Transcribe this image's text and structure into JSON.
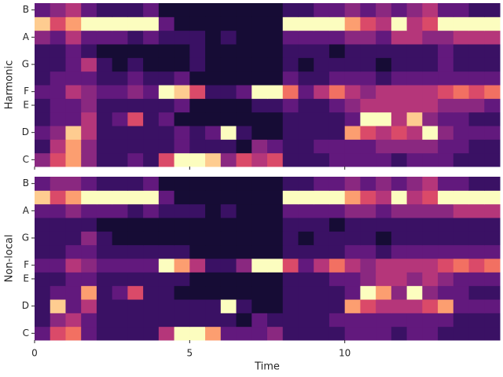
{
  "chart_data": [
    {
      "type": "heatmap",
      "ylabel": "Harmonic",
      "colormap": "magma",
      "show_xticklabels": false,
      "categories": [
        "C",
        null,
        "D",
        null,
        "E",
        "F",
        null,
        "G",
        null,
        "A",
        null,
        "B"
      ],
      "xlim": [
        0,
        15
      ],
      "xticks": [
        0,
        5,
        10
      ],
      "z": [
        [
          0.4,
          0.6,
          0.8,
          0.4,
          0.2,
          0.2,
          0.3,
          0.2,
          0.6,
          1,
          1,
          0.9,
          0.4,
          0.6,
          0.5,
          0.6,
          0.2,
          0.2,
          0.2,
          0.3,
          0.3,
          0.3,
          0.3,
          0.2,
          0.3,
          0.3,
          0.3,
          0.2,
          0.2,
          0.2
        ],
        [
          0.2,
          0.5,
          0.8,
          0.4,
          0.2,
          0.2,
          0.2,
          0.2,
          0.2,
          0.3,
          0.2,
          0.2,
          0.2,
          0.1,
          0.4,
          0.3,
          0.2,
          0.2,
          0.3,
          0.3,
          0.3,
          0.3,
          0.4,
          0.4,
          0.4,
          0.4,
          0.3,
          0.3,
          0.2,
          0.2
        ],
        [
          0.3,
          0.4,
          0.9,
          0.5,
          0.2,
          0.2,
          0.2,
          0.2,
          0.2,
          0.3,
          0.2,
          0.3,
          1,
          0.2,
          0.1,
          0.1,
          0.2,
          0.2,
          0.2,
          0.2,
          0.8,
          0.6,
          0.5,
          0.6,
          0.5,
          1,
          0.4,
          0.3,
          0.3,
          0.3
        ],
        [
          0.2,
          0.3,
          0.3,
          0.5,
          0.2,
          0.3,
          0.6,
          0.2,
          0.3,
          0.1,
          0.1,
          0.1,
          0.1,
          0.1,
          0.1,
          0.1,
          0.2,
          0.2,
          0.2,
          0.2,
          0.3,
          1,
          1,
          0.5,
          0.9,
          0.4,
          0.3,
          0.3,
          0.2,
          0.2
        ],
        [
          0.2,
          0.3,
          0.3,
          0.4,
          0.2,
          0.2,
          0.2,
          0.2,
          0.2,
          0.3,
          0.1,
          0.1,
          0.1,
          0.1,
          0.2,
          0.2,
          0.3,
          0.2,
          0.2,
          0.3,
          0.4,
          0.5,
          0.5,
          0.5,
          0.5,
          0.5,
          0.4,
          0.4,
          0.4,
          0.3
        ],
        [
          0.3,
          0.3,
          0.5,
          0.4,
          0.3,
          0.3,
          0.4,
          0.3,
          1,
          0.9,
          0.6,
          0.2,
          0.2,
          0.3,
          1,
          1,
          0.7,
          0.3,
          0.5,
          0.7,
          0.5,
          0.4,
          0.5,
          0.5,
          0.5,
          0.5,
          0.6,
          0.7,
          0.6,
          0.7
        ],
        [
          0.2,
          0.3,
          0.3,
          0.3,
          0.2,
          0.2,
          0.3,
          0.2,
          0.2,
          0.3,
          0.1,
          0.1,
          0.1,
          0.1,
          0.1,
          0.1,
          0.3,
          0.2,
          0.2,
          0.3,
          0.3,
          0.3,
          0.2,
          0.3,
          0.3,
          0.3,
          0.3,
          0.3,
          0.3,
          0.3
        ],
        [
          0.2,
          0.2,
          0.3,
          0.5,
          0.2,
          0.1,
          0.2,
          0.1,
          0.1,
          0.1,
          0.2,
          0.1,
          0.1,
          0.1,
          0.1,
          0.1,
          0.2,
          0.1,
          0.2,
          0.2,
          0.2,
          0.2,
          0.1,
          0.2,
          0.2,
          0.2,
          0.3,
          0.2,
          0.2,
          0.2
        ],
        [
          0.2,
          0.2,
          0.3,
          0.2,
          0.1,
          0.1,
          0.1,
          0.1,
          0.1,
          0.1,
          0.2,
          0.1,
          0.1,
          0.1,
          0.1,
          0.1,
          0.2,
          0.2,
          0.2,
          0.1,
          0.2,
          0.2,
          0.2,
          0.2,
          0.2,
          0.2,
          0.3,
          0.2,
          0.2,
          0.2
        ],
        [
          0.4,
          0.3,
          0.5,
          0.3,
          0.3,
          0.3,
          0.2,
          0.3,
          0.2,
          0.2,
          0.2,
          0.1,
          0.2,
          0.1,
          0.1,
          0.1,
          0.3,
          0.3,
          0.3,
          0.3,
          0.4,
          0.4,
          0.3,
          0.5,
          0.5,
          0.4,
          0.4,
          0.5,
          0.5,
          0.5
        ],
        [
          0.9,
          0.6,
          0.8,
          1,
          1,
          1,
          1,
          1,
          0.3,
          0.1,
          0.1,
          0.1,
          0.1,
          0.1,
          0.1,
          0.1,
          1,
          1,
          1,
          1,
          0.8,
          0.6,
          0.5,
          1,
          0.5,
          0.6,
          1,
          1,
          1,
          1
        ],
        [
          0.3,
          0.4,
          0.5,
          0.3,
          0.2,
          0.2,
          0.2,
          0.3,
          0.1,
          0.1,
          0.1,
          0.1,
          0.1,
          0.1,
          0.1,
          0.1,
          0.2,
          0.2,
          0.3,
          0.3,
          0.4,
          0.3,
          0.4,
          0.3,
          0.4,
          0.5,
          0.3,
          0.3,
          0.2,
          0.2
        ]
      ]
    },
    {
      "type": "heatmap",
      "ylabel": "Non-local",
      "xlabel": "Time",
      "colormap": "magma",
      "show_xticklabels": true,
      "categories": [
        "C",
        null,
        "D",
        null,
        "E",
        "F",
        null,
        "G",
        null,
        "A",
        null,
        "B"
      ],
      "xlim": [
        0,
        15
      ],
      "xticks": [
        0,
        5,
        10
      ],
      "z": [
        [
          0.3,
          0.6,
          0.7,
          0.3,
          0.2,
          0.2,
          0.2,
          0.2,
          0.5,
          1,
          1,
          0.8,
          0.3,
          0.3,
          0.3,
          0.4,
          0.2,
          0.2,
          0.2,
          0.2,
          0.3,
          0.3,
          0.3,
          0.2,
          0.3,
          0.3,
          0.2,
          0.2,
          0.2,
          0.2
        ],
        [
          0.2,
          0.4,
          0.5,
          0.3,
          0.2,
          0.2,
          0.2,
          0.2,
          0.2,
          0.2,
          0.2,
          0.2,
          0.2,
          0.1,
          0.3,
          0.2,
          0.2,
          0.2,
          0.2,
          0.3,
          0.3,
          0.3,
          0.3,
          0.3,
          0.3,
          0.3,
          0.3,
          0.2,
          0.2,
          0.2
        ],
        [
          0.2,
          0.9,
          0.3,
          0.5,
          0.2,
          0.2,
          0.2,
          0.2,
          0.2,
          0.2,
          0.2,
          0.2,
          1,
          0.2,
          0.1,
          0.1,
          0.2,
          0.2,
          0.2,
          0.2,
          0.8,
          0.6,
          0.5,
          0.5,
          0.5,
          0.6,
          0.8,
          0.3,
          0.3,
          0.3
        ],
        [
          0.2,
          0.3,
          0.3,
          0.8,
          0.2,
          0.3,
          0.6,
          0.2,
          0.2,
          0.1,
          0.1,
          0.1,
          0.1,
          0.1,
          0.1,
          0.1,
          0.2,
          0.2,
          0.2,
          0.2,
          0.3,
          1,
          0.8,
          0.4,
          1,
          0.4,
          0.3,
          0.3,
          0.2,
          0.2
        ],
        [
          0.2,
          0.2,
          0.3,
          0.3,
          0.2,
          0.2,
          0.2,
          0.2,
          0.2,
          0.2,
          0.1,
          0.1,
          0.1,
          0.1,
          0.1,
          0.1,
          0.2,
          0.2,
          0.2,
          0.3,
          0.3,
          0.4,
          0.5,
          0.5,
          0.4,
          0.5,
          0.4,
          0.3,
          0.3,
          0.3
        ],
        [
          0.3,
          0.3,
          0.5,
          0.4,
          0.3,
          0.3,
          0.3,
          0.3,
          1,
          0.8,
          0.5,
          0.2,
          0.2,
          0.4,
          1,
          1,
          0.6,
          0.3,
          0.5,
          0.7,
          0.5,
          0.4,
          0.5,
          0.5,
          0.5,
          0.5,
          0.6,
          0.7,
          0.6,
          0.7
        ],
        [
          0.2,
          0.2,
          0.3,
          0.3,
          0.2,
          0.2,
          0.2,
          0.2,
          0.2,
          0.2,
          0.1,
          0.1,
          0.1,
          0.1,
          0.1,
          0.1,
          0.2,
          0.2,
          0.2,
          0.2,
          0.3,
          0.3,
          0.2,
          0.3,
          0.3,
          0.3,
          0.3,
          0.3,
          0.3,
          0.3
        ],
        [
          0.2,
          0.2,
          0.2,
          0.4,
          0.2,
          0.1,
          0.1,
          0.1,
          0.1,
          0.1,
          0.1,
          0.1,
          0.1,
          0.1,
          0.1,
          0.1,
          0.2,
          0.1,
          0.2,
          0.2,
          0.2,
          0.2,
          0.1,
          0.2,
          0.2,
          0.2,
          0.2,
          0.2,
          0.2,
          0.2
        ],
        [
          0.2,
          0.2,
          0.2,
          0.2,
          0.1,
          0.1,
          0.1,
          0.1,
          0.1,
          0.1,
          0.1,
          0.1,
          0.1,
          0.1,
          0.1,
          0.1,
          0.2,
          0.2,
          0.2,
          0.1,
          0.2,
          0.2,
          0.2,
          0.2,
          0.2,
          0.2,
          0.2,
          0.2,
          0.2,
          0.2
        ],
        [
          0.3,
          0.3,
          0.4,
          0.3,
          0.3,
          0.3,
          0.2,
          0.3,
          0.2,
          0.2,
          0.2,
          0.1,
          0.2,
          0.1,
          0.1,
          0.1,
          0.3,
          0.3,
          0.3,
          0.3,
          0.4,
          0.4,
          0.3,
          0.4,
          0.4,
          0.4,
          0.4,
          0.5,
          0.5,
          0.5
        ],
        [
          0.9,
          0.6,
          0.8,
          1,
          1,
          1,
          1,
          1,
          0.3,
          0.1,
          0.1,
          0.1,
          0.1,
          0.1,
          0.1,
          0.1,
          1,
          1,
          1,
          1,
          0.8,
          0.6,
          0.5,
          1,
          0.5,
          0.6,
          1,
          1,
          1,
          1
        ],
        [
          0.3,
          0.4,
          0.4,
          0.3,
          0.2,
          0.2,
          0.2,
          0.3,
          0.1,
          0.1,
          0.1,
          0.1,
          0.1,
          0.1,
          0.1,
          0.1,
          0.2,
          0.2,
          0.3,
          0.3,
          0.4,
          0.3,
          0.4,
          0.3,
          0.4,
          0.5,
          0.3,
          0.3,
          0.2,
          0.2
        ]
      ]
    }
  ]
}
